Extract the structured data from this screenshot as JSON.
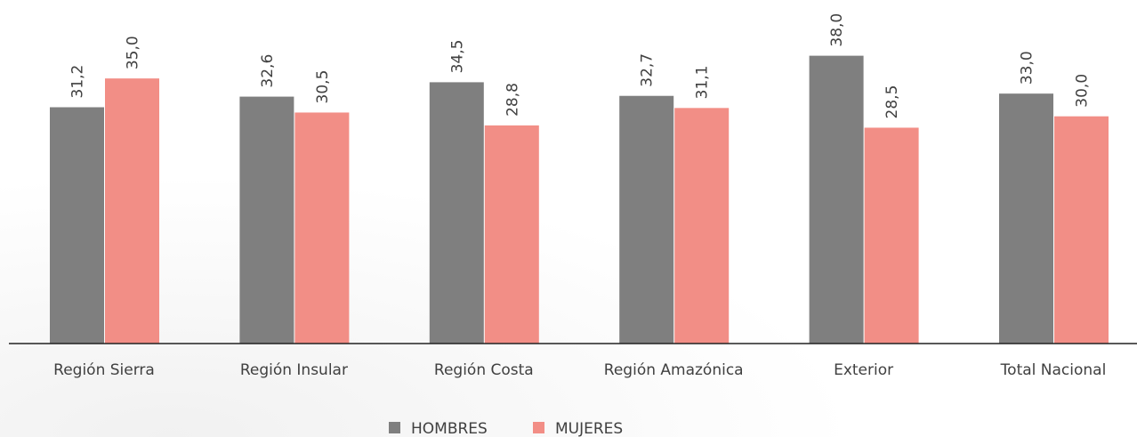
{
  "chart_data": {
    "type": "bar",
    "categories": [
      "Región Sierra",
      "Región Insular",
      "Región Costa",
      "Región Amazónica",
      "Exterior",
      "Total Nacional"
    ],
    "series": [
      {
        "name": "HOMBRES",
        "color": "#7f7f7f",
        "values": [
          31.2,
          32.6,
          34.5,
          32.7,
          38.0,
          33.0
        ],
        "value_labels": [
          "31,2",
          "32,6",
          "34,5",
          "32,7",
          "38,0",
          "33,0"
        ]
      },
      {
        "name": "MUJERES",
        "color": "#f28e86",
        "values": [
          35.0,
          30.5,
          28.8,
          31.1,
          28.5,
          30.0
        ],
        "value_labels": [
          "35,0",
          "30,5",
          "28,8",
          "31,1",
          "28,5",
          "30,0"
        ]
      }
    ]
  }
}
